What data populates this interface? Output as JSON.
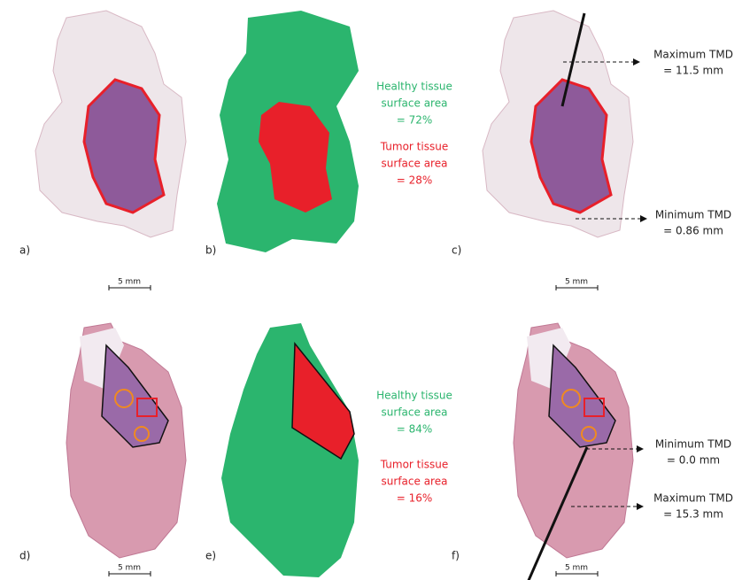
{
  "panels": [
    {
      "label": "a)",
      "scale_bar": "5 mm"
    },
    {
      "label": "b)"
    },
    {
      "label": "c)",
      "scale_bar": "5 mm"
    },
    {
      "label": "d)",
      "scale_bar": "5 mm"
    },
    {
      "label": "e)"
    },
    {
      "label": "f)",
      "scale_bar": "5 mm"
    }
  ],
  "area_texts": [
    {
      "healthy": [
        "Healthy tissue",
        "surface area",
        "= 72%"
      ],
      "tumor": [
        "Tumor tissue",
        "surface area",
        "= 28%"
      ]
    },
    {
      "healthy": [
        "Healthy tissue",
        "surface area",
        "= 84%"
      ],
      "tumor": [
        "Tumor tissue",
        "surface area",
        "= 16%"
      ]
    }
  ],
  "tmd_texts": [
    {
      "max": [
        "Maximum TMD",
        "= 11.5 mm"
      ],
      "min": [
        "Minimum TMD",
        "= 0.86 mm"
      ]
    },
    {
      "min": [
        "Minimum TMD",
        "= 0.0 mm"
      ],
      "max": [
        "Maximum TMD",
        "= 15.3 mm"
      ]
    }
  ]
}
